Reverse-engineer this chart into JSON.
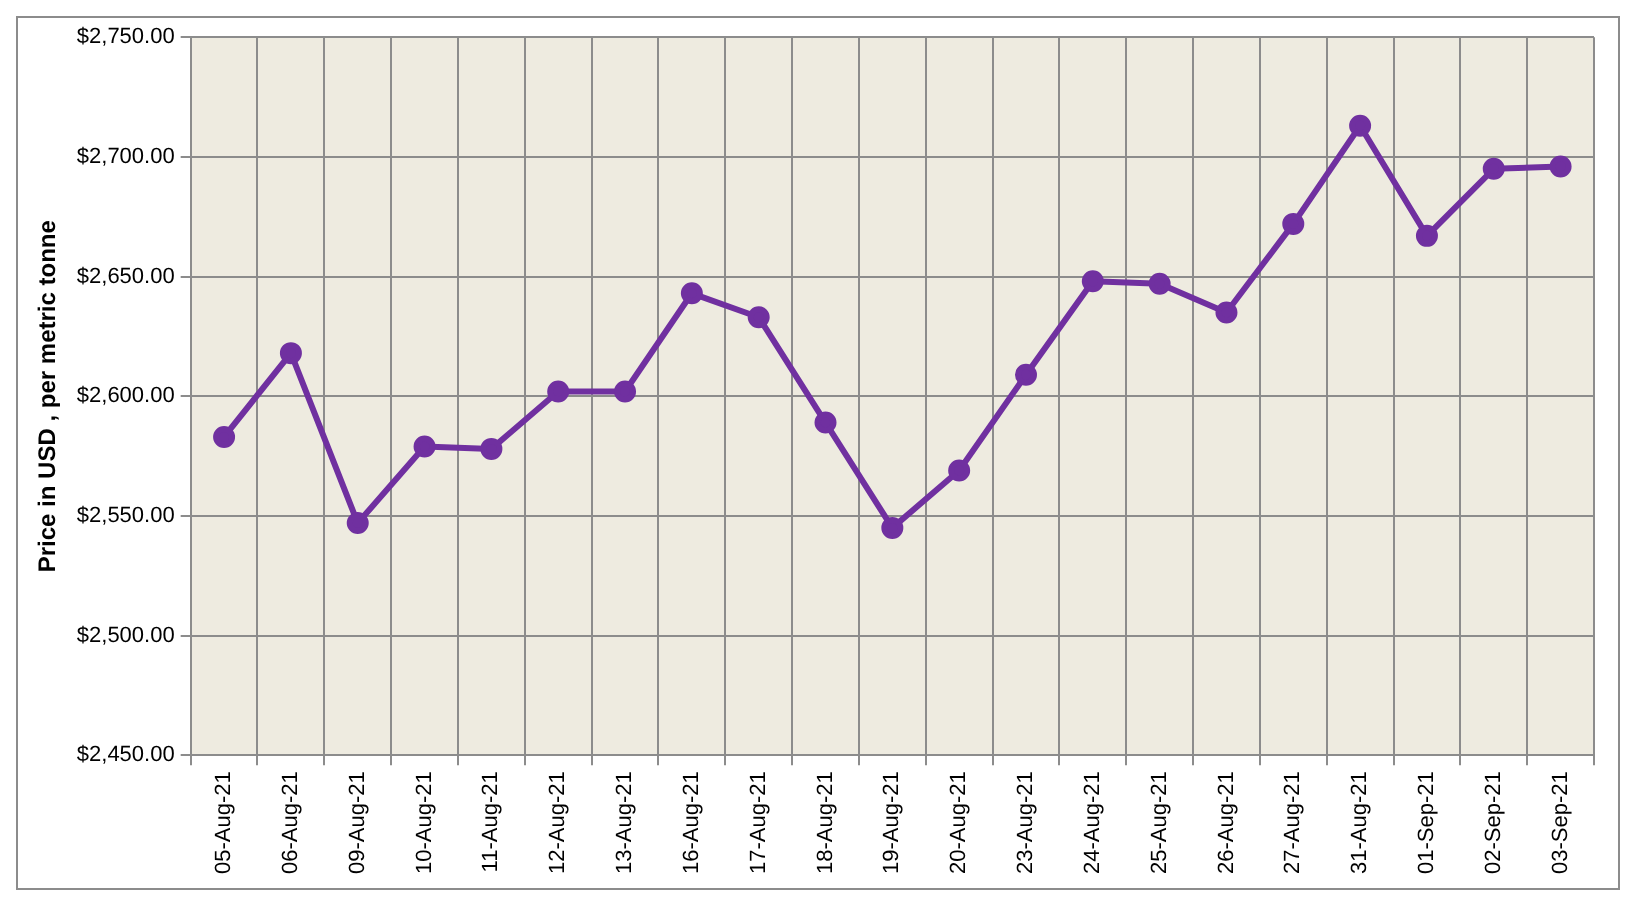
{
  "chart_data": {
    "type": "line",
    "ylabel": "Price in USD , per metric tonne",
    "categories": [
      "05-Aug-21",
      "06-Aug-21",
      "09-Aug-21",
      "10-Aug-21",
      "11-Aug-21",
      "12-Aug-21",
      "13-Aug-21",
      "16-Aug-21",
      "17-Aug-21",
      "18-Aug-21",
      "19-Aug-21",
      "20-Aug-21",
      "23-Aug-21",
      "24-Aug-21",
      "25-Aug-21",
      "26-Aug-21",
      "27-Aug-21",
      "31-Aug-21",
      "01-Sep-21",
      "02-Sep-21",
      "03-Sep-21"
    ],
    "series": [
      {
        "color": "#7030a0",
        "values": [
          2583,
          2618,
          2547,
          2579,
          2578,
          2602,
          2602,
          2643,
          2633,
          2589,
          2545,
          2569,
          2609,
          2648,
          2647,
          2635,
          2672,
          2713,
          2667,
          2695,
          2696
        ]
      }
    ],
    "ylim": [
      2450,
      2750
    ],
    "yticks": [
      {
        "value": 2450,
        "label": "$2,450.00"
      },
      {
        "value": 2500,
        "label": "$2,500.00"
      },
      {
        "value": 2550,
        "label": "$2,550.00"
      },
      {
        "value": 2600,
        "label": "$2,600.00"
      },
      {
        "value": 2650,
        "label": "$2,650.00"
      },
      {
        "value": 2700,
        "label": "$2,700.00"
      },
      {
        "value": 2750,
        "label": "$2,750.00"
      }
    ],
    "grid": true,
    "legend": false,
    "marker": "circle",
    "line_style": "solid"
  }
}
